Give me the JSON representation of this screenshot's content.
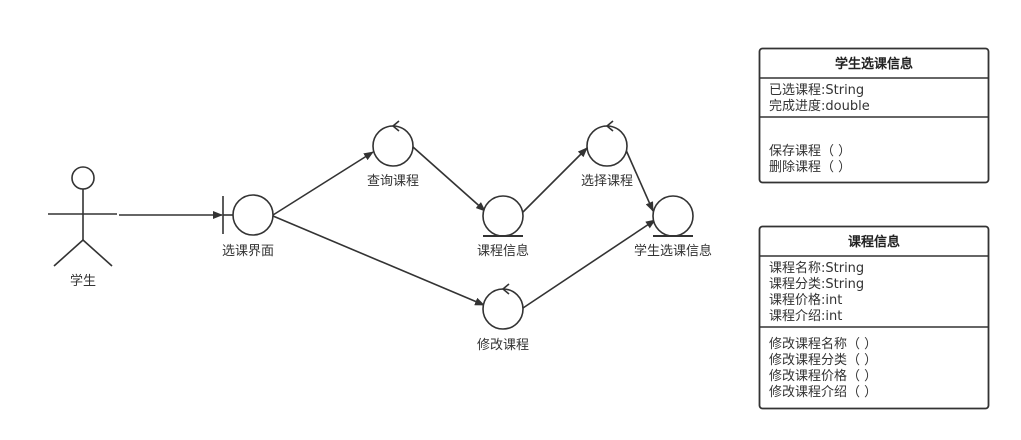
{
  "actor": {
    "label": "学生"
  },
  "objects": {
    "ui": "选课界面",
    "query": "查询课程",
    "course_info": "课程信息",
    "select": "选择课程",
    "student_course": "学生选课信息",
    "modify": "修改课程"
  },
  "classes": {
    "student_course": {
      "title": "学生选课信息",
      "attributes": [
        "已选课程:String",
        "完成进度:double"
      ],
      "methods": [
        "保存课程（ ）",
        "删除课程（ ）"
      ]
    },
    "course": {
      "title": "课程信息",
      "attributes": [
        "课程名称:String",
        "课程分类:String",
        "课程价格:int",
        "课程介绍:int"
      ],
      "methods": [
        "修改课程名称（ ）",
        "修改课程分类（ ）",
        "修改课程价格（ ）",
        "修改课程介绍（ ）"
      ]
    }
  }
}
